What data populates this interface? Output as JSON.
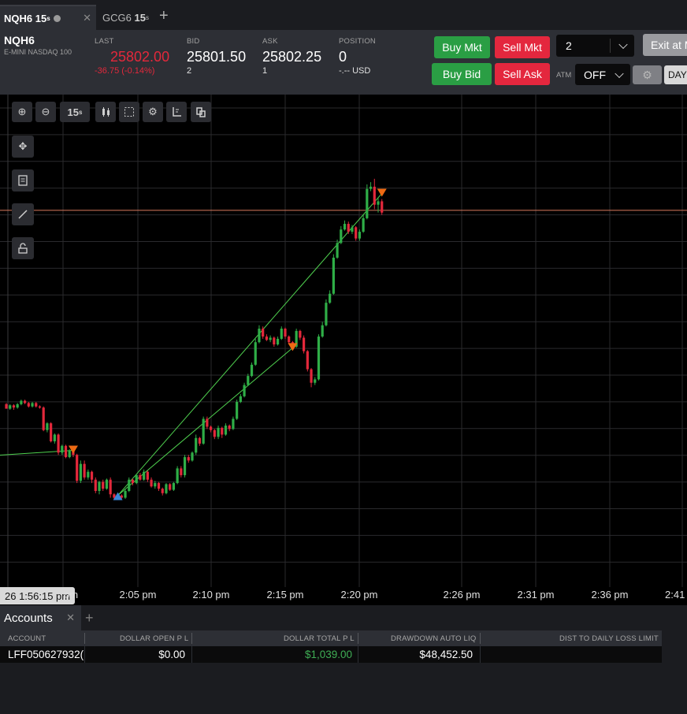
{
  "tabs": [
    {
      "symbol": "NQH6",
      "interval": "15",
      "interval_unit": "s"
    },
    {
      "symbol": "GCG6",
      "interval": "15",
      "interval_unit": "s"
    }
  ],
  "instrument": {
    "symbol": "NQH6",
    "name": "E-MINI NASDAQ 100"
  },
  "quote": {
    "last_label": "LAST",
    "last": "25802.00",
    "change": "-36.75 (-0.14%)",
    "bid_label": "BID",
    "bid": "25801.50",
    "bid_size": "2",
    "ask_label": "ASK",
    "ask": "25802.25",
    "ask_size": "1",
    "position_label": "POSITION",
    "position": "0",
    "pnl": "-.-- USD"
  },
  "order": {
    "buy_mkt": "Buy Mkt",
    "sell_mkt": "Sell Mkt",
    "buy_bid": "Buy Bid",
    "sell_ask": "Sell Ask",
    "quantity": "2",
    "exit": "Exit at M",
    "atm_label": "ATM",
    "atm_value": "OFF",
    "tif": "DAY"
  },
  "toolbar": {
    "interval_label": "15",
    "interval_unit": "s"
  },
  "x_axis": {
    "cursor_label": "26 1:56:15 pm",
    "ticks": [
      "pm",
      "2:05 pm",
      "2:10 pm",
      "2:15 pm",
      "2:20 pm",
      "2:26 pm",
      "2:31 pm",
      "2:36 pm",
      "2:41"
    ]
  },
  "colors": {
    "up": "#2fae47",
    "down": "#e3283b",
    "last_line": "#d97a5e",
    "buy_marker": "#3a86d8",
    "sell_marker": "#ee6a13",
    "trade_line": "#4fd14f"
  },
  "chart_data": {
    "type": "candlestick",
    "interval": "15s",
    "x": "candle index",
    "candles": [
      [
        0,
        5,
        1,
        6,
        1
      ],
      [
        1,
        1,
        4,
        5,
        0
      ],
      [
        2,
        4,
        2,
        5,
        0
      ],
      [
        3,
        2,
        5,
        6,
        1
      ],
      [
        4,
        5,
        8,
        9,
        4
      ],
      [
        5,
        8,
        6,
        9,
        5
      ],
      [
        6,
        6,
        3,
        7,
        2
      ],
      [
        7,
        3,
        6,
        7,
        2
      ],
      [
        8,
        6,
        3,
        7,
        2
      ],
      [
        9,
        3,
        2,
        4,
        1
      ],
      [
        10,
        2,
        -18,
        3,
        -19
      ],
      [
        11,
        -18,
        -12,
        -11,
        -20
      ],
      [
        12,
        -12,
        -28,
        -11,
        -29
      ],
      [
        13,
        -28,
        -22,
        -21,
        -30
      ],
      [
        14,
        -22,
        -38,
        -21,
        -40
      ],
      [
        15,
        -38,
        -32,
        -31,
        -40
      ],
      [
        16,
        -32,
        -42,
        -31,
        -43
      ],
      [
        17,
        -42,
        -36,
        -35,
        -43
      ],
      [
        18,
        -36,
        -40,
        -34,
        -42
      ],
      [
        19,
        -40,
        -63,
        -39,
        -65
      ],
      [
        20,
        -63,
        -48,
        -45,
        -65
      ],
      [
        21,
        -48,
        -60,
        -45,
        -62
      ],
      [
        22,
        -60,
        -55,
        -53,
        -62
      ],
      [
        23,
        -55,
        -62,
        -54,
        -65
      ],
      [
        24,
        -62,
        -72,
        -60,
        -74
      ],
      [
        25,
        -72,
        -64,
        -63,
        -75
      ],
      [
        26,
        -64,
        -70,
        -62,
        -72
      ],
      [
        27,
        -70,
        -62,
        -61,
        -71
      ],
      [
        28,
        -62,
        -75,
        -60,
        -78
      ],
      [
        29,
        -75,
        -78,
        -74,
        -80
      ],
      [
        30,
        -78,
        -76,
        -74,
        -79
      ],
      [
        31,
        -76,
        -78,
        -75,
        -79
      ],
      [
        32,
        -78,
        -72,
        -70,
        -79
      ],
      [
        33,
        -72,
        -62,
        -60,
        -73
      ],
      [
        34,
        -62,
        -65,
        -61,
        -67
      ],
      [
        35,
        -65,
        -58,
        -57,
        -66
      ],
      [
        36,
        -58,
        -62,
        -56,
        -63
      ],
      [
        37,
        -62,
        -55,
        -53,
        -63
      ],
      [
        38,
        -55,
        -62,
        -54,
        -64
      ],
      [
        39,
        -62,
        -68,
        -60,
        -69
      ],
      [
        40,
        -68,
        -65,
        -63,
        -70
      ],
      [
        41,
        -65,
        -70,
        -64,
        -72
      ],
      [
        42,
        -70,
        -74,
        -69,
        -76
      ],
      [
        43,
        -74,
        -66,
        -65,
        -75
      ],
      [
        44,
        -66,
        -71,
        -65,
        -72
      ],
      [
        45,
        -71,
        -65,
        -64,
        -72
      ],
      [
        46,
        -65,
        -52,
        -50,
        -66
      ],
      [
        47,
        -52,
        -58,
        -50,
        -60
      ],
      [
        48,
        -58,
        -42,
        -40,
        -60
      ],
      [
        49,
        -42,
        -45,
        -40,
        -47
      ],
      [
        50,
        -45,
        -38,
        -37,
        -46
      ],
      [
        51,
        -38,
        -25,
        -22,
        -40
      ],
      [
        52,
        -25,
        -30,
        -24,
        -32
      ],
      [
        53,
        -30,
        -8,
        -6,
        -31
      ],
      [
        54,
        -8,
        -15,
        -6,
        -17
      ],
      [
        55,
        -15,
        -18,
        -14,
        -20
      ],
      [
        56,
        -18,
        -24,
        -17,
        -26
      ],
      [
        57,
        -24,
        -16,
        -14,
        -26
      ],
      [
        58,
        -16,
        -22,
        -15,
        -25
      ],
      [
        59,
        -22,
        -14,
        -12,
        -23
      ],
      [
        60,
        -14,
        -17,
        -13,
        -19
      ],
      [
        61,
        -17,
        -8,
        -6,
        -18
      ],
      [
        62,
        -8,
        7,
        9,
        -9
      ],
      [
        63,
        7,
        12,
        14,
        6
      ],
      [
        64,
        12,
        22,
        24,
        11
      ],
      [
        65,
        22,
        30,
        32,
        21
      ],
      [
        66,
        30,
        40,
        42,
        29
      ],
      [
        67,
        40,
        60,
        63,
        39
      ],
      [
        68,
        60,
        72,
        75,
        59
      ],
      [
        69,
        72,
        65,
        74,
        63
      ],
      [
        70,
        65,
        62,
        67,
        61
      ],
      [
        71,
        62,
        64,
        66,
        60
      ],
      [
        72,
        64,
        58,
        65,
        56
      ],
      [
        73,
        58,
        63,
        65,
        57
      ],
      [
        74,
        63,
        72,
        74,
        62
      ],
      [
        75,
        72,
        65,
        73,
        63
      ],
      [
        76,
        65,
        60,
        66,
        58
      ],
      [
        77,
        60,
        56,
        61,
        54
      ],
      [
        78,
        56,
        70,
        72,
        55
      ],
      [
        79,
        70,
        64,
        71,
        62
      ],
      [
        80,
        64,
        52,
        66,
        50
      ],
      [
        81,
        52,
        36,
        53,
        34
      ],
      [
        82,
        36,
        24,
        37,
        20
      ],
      [
        83,
        24,
        27,
        29,
        22
      ],
      [
        84,
        27,
        65,
        67,
        26
      ],
      [
        85,
        65,
        75,
        78,
        64
      ],
      [
        86,
        75,
        95,
        98,
        74
      ],
      [
        87,
        95,
        103,
        106,
        94
      ],
      [
        88,
        103,
        135,
        138,
        102
      ],
      [
        89,
        135,
        148,
        151,
        134
      ],
      [
        90,
        148,
        160,
        163,
        147
      ],
      [
        91,
        160,
        165,
        168,
        159
      ],
      [
        92,
        165,
        158,
        167,
        156
      ],
      [
        93,
        158,
        162,
        164,
        156
      ],
      [
        94,
        162,
        152,
        163,
        150
      ],
      [
        95,
        152,
        158,
        160,
        150
      ],
      [
        96,
        158,
        170,
        173,
        157
      ],
      [
        97,
        170,
        196,
        200,
        169
      ],
      [
        98,
        196,
        198,
        202,
        194
      ],
      [
        99,
        198,
        182,
        205,
        178
      ],
      [
        100,
        182,
        185,
        188,
        175
      ],
      [
        101,
        185,
        175,
        187,
        173
      ]
    ],
    "last_price_level": 177,
    "trade_markers": [
      {
        "candle": 18,
        "price": -36,
        "side": "sell"
      },
      {
        "candle": 30,
        "price": -76,
        "side": "buy"
      },
      {
        "candle": 77,
        "price": 55,
        "side": "sell"
      },
      {
        "candle": 101,
        "price": 192,
        "side": "sell"
      }
    ]
  },
  "accounts": {
    "tab_label": "Accounts",
    "headers": [
      "ACCOUNT",
      "DOLLAR OPEN P L",
      "DOLLAR TOTAL P L",
      "DRAWDOWN AUTO LIQ",
      "DIST TO DAILY LOSS LIMIT"
    ],
    "row": {
      "account": "LFF050627932(",
      "open_pl": "$0.00",
      "total_pl": "$1,039.00",
      "drawdown": "$48,452.50",
      "dist": ""
    }
  }
}
